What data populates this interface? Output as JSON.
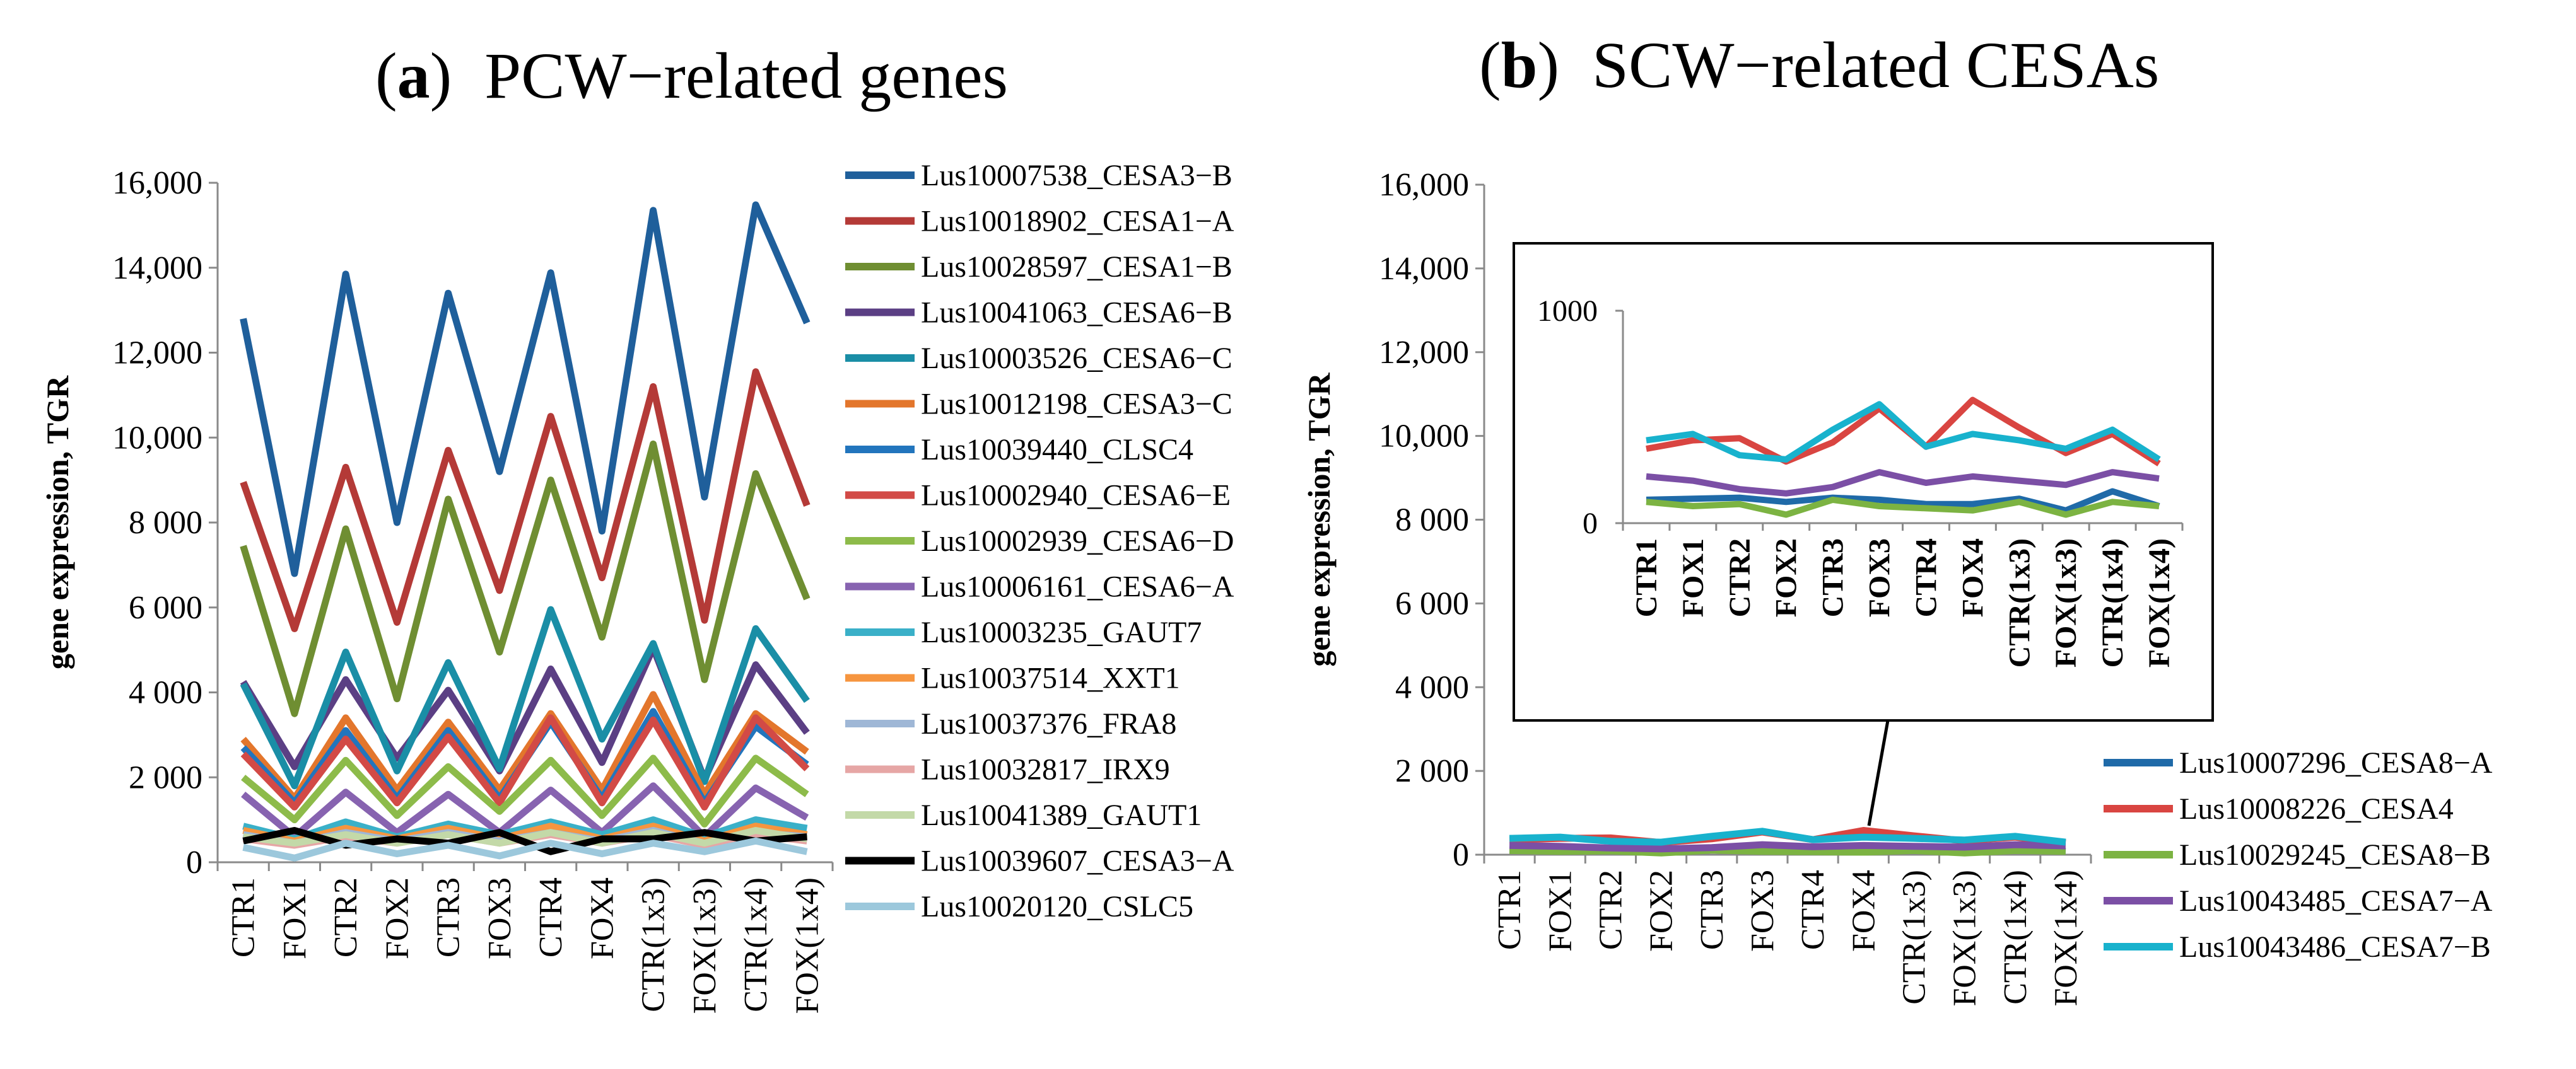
{
  "chart_data": [
    {
      "type": "line",
      "panel_letter": "a",
      "title": "PCW−related genes",
      "xlabel": "",
      "ylabel": "gene expression, TGR",
      "categories": [
        "CTR1",
        "FOX1",
        "CTR2",
        "FOX2",
        "CTR3",
        "FOX3",
        "CTR4",
        "FOX4",
        "CTR(1x3)",
        "FOX(1x3)",
        "CTR(1x4)",
        "FOX(1x4)"
      ],
      "ylim": [
        0,
        16000
      ],
      "yticks": [
        0,
        2000,
        4000,
        6000,
        8000,
        10000,
        12000,
        14000,
        16000
      ],
      "ytick_labels": [
        "0",
        "2 000",
        "4 000",
        "6 000",
        "8 000",
        "10,000",
        "12,000",
        "14,000",
        "16,000"
      ],
      "legend_position": "right",
      "series": [
        {
          "name": "Lus10007538_CESA3−B",
          "color": "#1f5f9b",
          "values": [
            12800,
            6800,
            13850,
            8000,
            13400,
            9200,
            13880,
            7800,
            15350,
            8600,
            15480,
            12700
          ]
        },
        {
          "name": "Lus10018902_CESA1−A",
          "color": "#b43a37",
          "values": [
            8950,
            5500,
            9300,
            5650,
            9700,
            6400,
            10500,
            6700,
            11200,
            5700,
            11550,
            8400
          ]
        },
        {
          "name": "Lus10028597_CESA1−B",
          "color": "#6f8e32",
          "values": [
            7450,
            3500,
            7850,
            3850,
            8550,
            4950,
            9000,
            5300,
            9850,
            4300,
            9150,
            6200
          ]
        },
        {
          "name": "Lus10041063_CESA6−B",
          "color": "#5b3f84",
          "values": [
            4250,
            2250,
            4300,
            2450,
            4050,
            2150,
            4550,
            2350,
            5050,
            1950,
            4650,
            3050
          ]
        },
        {
          "name": "Lus10003526_CESA6−C",
          "color": "#1a8ea6",
          "values": [
            4200,
            1800,
            4950,
            2150,
            4700,
            2200,
            5950,
            2900,
            5150,
            1900,
            5500,
            3800
          ]
        },
        {
          "name": "Lus10012198_CESA3−C",
          "color": "#e3762c",
          "values": [
            2900,
            1500,
            3400,
            1700,
            3300,
            1700,
            3500,
            1700,
            3950,
            1600,
            3500,
            2600
          ]
        },
        {
          "name": "Lus10039440_CLSC4",
          "color": "#2275bd",
          "values": [
            2700,
            1400,
            3100,
            1500,
            3100,
            1500,
            3300,
            1500,
            3550,
            1400,
            3200,
            2300
          ]
        },
        {
          "name": "Lus10002940_CESA6−E",
          "color": "#d24a46",
          "values": [
            2550,
            1300,
            2900,
            1400,
            2950,
            1400,
            3400,
            1400,
            3350,
            1300,
            3400,
            2200
          ]
        },
        {
          "name": "Lus10002939_CESA6−D",
          "color": "#8dbb4a",
          "values": [
            2000,
            1000,
            2400,
            1100,
            2250,
            1200,
            2400,
            1100,
            2450,
            900,
            2450,
            1600
          ]
        },
        {
          "name": "Lus10006161_CESA6−A",
          "color": "#8763b0",
          "values": [
            1600,
            600,
            1650,
            700,
            1600,
            700,
            1700,
            700,
            1800,
            600,
            1750,
            1050
          ]
        },
        {
          "name": "Lus10003235_GAUT7",
          "color": "#3ab0c8",
          "values": [
            850,
            550,
            950,
            600,
            900,
            650,
            950,
            650,
            1000,
            600,
            1000,
            800
          ]
        },
        {
          "name": "Lus10037514_XXT1",
          "color": "#f6953f",
          "values": [
            750,
            500,
            800,
            550,
            800,
            550,
            850,
            550,
            850,
            500,
            850,
            650
          ]
        },
        {
          "name": "Lus10037376_FRA8",
          "color": "#9fb7d6",
          "values": [
            650,
            450,
            700,
            500,
            700,
            500,
            700,
            500,
            750,
            450,
            700,
            600
          ]
        },
        {
          "name": "Lus10032817_IRX9",
          "color": "#e6a6a5",
          "values": [
            550,
            400,
            600,
            450,
            650,
            450,
            650,
            450,
            650,
            400,
            650,
            500
          ]
        },
        {
          "name": "Lus10041389_GAUT1",
          "color": "#c3d9a8",
          "values": [
            600,
            450,
            650,
            450,
            650,
            450,
            700,
            450,
            700,
            450,
            750,
            550
          ]
        },
        {
          "name": "Lus10039607_CESA3−A",
          "color": "#000000",
          "values": [
            500,
            750,
            400,
            550,
            450,
            700,
            250,
            550,
            550,
            700,
            500,
            600
          ]
        },
        {
          "name": "Lus10020120_CSLC5",
          "color": "#9cc8dc",
          "values": [
            350,
            100,
            450,
            200,
            400,
            150,
            450,
            200,
            450,
            250,
            500,
            250
          ]
        }
      ]
    },
    {
      "type": "line",
      "panel_letter": "b",
      "title": "SCW−related CESAs",
      "xlabel": "",
      "ylabel": "gene expression, TGR",
      "categories": [
        "CTR1",
        "FOX1",
        "CTR2",
        "FOX2",
        "CTR3",
        "FOX3",
        "CTR4",
        "FOX4",
        "CTR(1x3)",
        "FOX(1x3)",
        "CTR(1x4)",
        "FOX(1x4)"
      ],
      "ylim": [
        0,
        16000
      ],
      "yticks": [
        0,
        2000,
        4000,
        6000,
        8000,
        10000,
        12000,
        14000,
        16000
      ],
      "ytick_labels": [
        "0",
        "2 000",
        "4 000",
        "6 000",
        "8 000",
        "10,000",
        "12,000",
        "14,000",
        "16,000"
      ],
      "legend_position": "bottom-right",
      "inset": {
        "ylim": [
          0,
          1000
        ],
        "ytick_labels": [
          "0",
          "1000"
        ]
      },
      "series": [
        {
          "name": "Lus10007296_CESA8−A",
          "color": "#1f6aa8",
          "values": [
            110,
            115,
            120,
            100,
            120,
            110,
            90,
            90,
            115,
            60,
            150,
            80
          ]
        },
        {
          "name": "Lus10008226_CESA4",
          "color": "#d94541",
          "values": [
            350,
            390,
            400,
            290,
            380,
            540,
            360,
            580,
            450,
            330,
            420,
            280
          ]
        },
        {
          "name": "Lus10029245_CESA8−B",
          "color": "#7cb342",
          "values": [
            100,
            80,
            90,
            40,
            110,
            80,
            70,
            60,
            100,
            40,
            100,
            80
          ]
        },
        {
          "name": "Lus10043485_CESA7−A",
          "color": "#7b4fa5",
          "values": [
            220,
            200,
            160,
            140,
            170,
            240,
            190,
            220,
            200,
            180,
            240,
            210
          ]
        },
        {
          "name": "Lus10043486_CESA7−B",
          "color": "#18b2cd",
          "values": [
            390,
            420,
            320,
            300,
            440,
            560,
            360,
            420,
            390,
            350,
            440,
            300
          ]
        }
      ]
    }
  ]
}
